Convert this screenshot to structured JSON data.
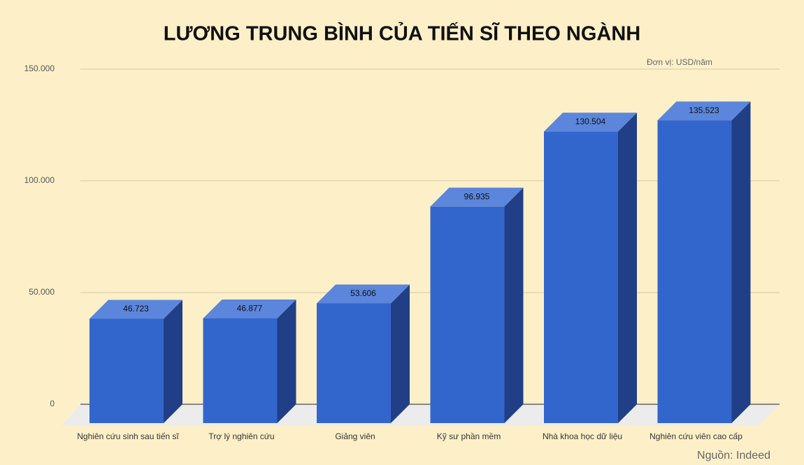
{
  "chart_data": {
    "type": "bar3d",
    "title": "LƯƠNG TRUNG BÌNH CỦA TIẾN SĨ THEO NGÀNH",
    "unit_note": "Đơn vị: USD/năm",
    "source": "Nguồn: Indeed",
    "categories": [
      "Nghiên cứu sinh sau tiến sĩ",
      "Trợ lý nghiên cứu",
      "Giảng viên",
      "Kỹ sư phần mềm",
      "Nhà khoa học dữ liệu",
      "Nghiên cứu viên cao cấp"
    ],
    "values": [
      46723,
      46877,
      53606,
      96935,
      130504,
      135523
    ],
    "value_labels": [
      "46.723",
      "46.877",
      "53.606",
      "96.935",
      "130.504",
      "135.523"
    ],
    "color": "#3366cc",
    "ylim": [
      0,
      150000
    ],
    "yticks": [
      0,
      {
        "value": 50000,
        "label": "50.000"
      },
      {
        "value": 100000,
        "label": "100.000"
      },
      {
        "value": 150000,
        "label": "150.000"
      }
    ],
    "grid": true
  }
}
